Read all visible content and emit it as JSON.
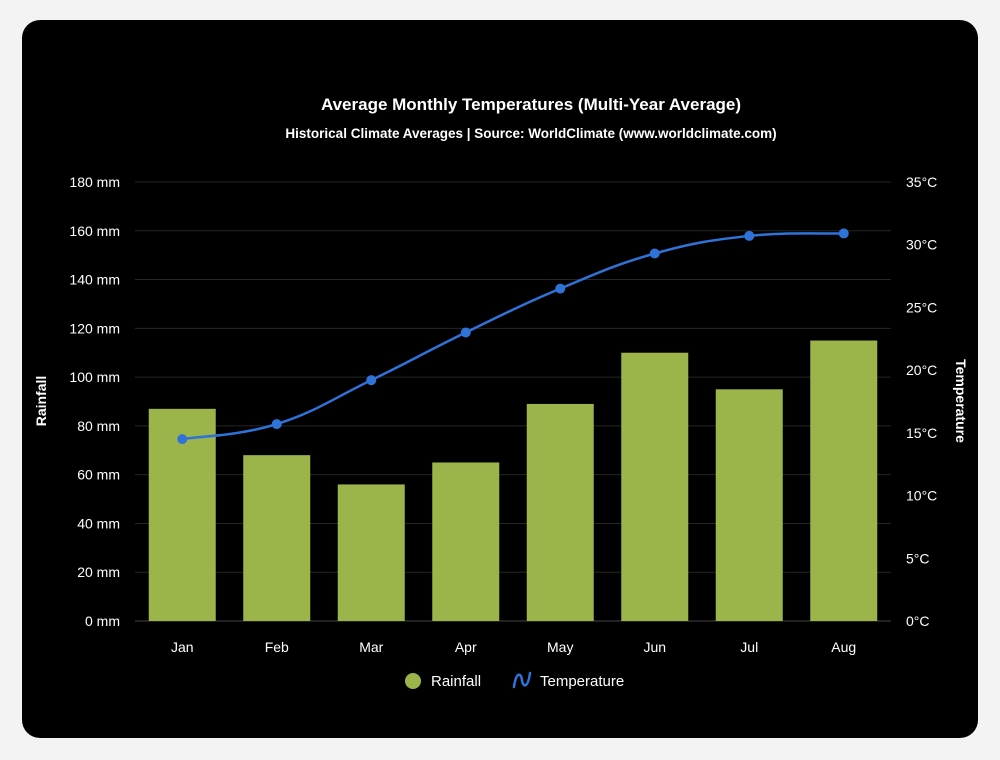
{
  "chart_data": {
    "type": "bar",
    "title": "Average Monthly Temperatures (Multi-Year Average)",
    "subtitle": "Historical Climate Averages | Source: WorldClimate (www.worldclimate.com)",
    "categories": [
      "Jan",
      "Feb",
      "Mar",
      "Apr",
      "May",
      "Jun",
      "Jul",
      "Aug"
    ],
    "series": [
      {
        "name": "Rainfall",
        "type": "bar",
        "axis": "left",
        "color": "#9cb54a",
        "values": [
          87,
          68,
          56,
          65,
          89,
          110,
          95,
          115
        ]
      },
      {
        "name": "Temperature",
        "type": "line",
        "axis": "right",
        "color": "#2f72d8",
        "values": [
          14.5,
          15.7,
          19.2,
          23.0,
          26.5,
          29.3,
          30.7,
          30.9
        ]
      }
    ],
    "y_left": {
      "label": "Rainfall",
      "range": [
        0,
        180
      ],
      "ticks": [
        "0 mm",
        "20 mm",
        "40 mm",
        "60 mm",
        "80 mm",
        "100 mm",
        "120 mm",
        "140 mm",
        "160 mm",
        "180 mm"
      ]
    },
    "y_right": {
      "label": "Temperature",
      "range": [
        0,
        35
      ],
      "ticks": [
        "0°C",
        "5°C",
        "10°C",
        "15°C",
        "20°C",
        "25°C",
        "30°C",
        "35°C"
      ]
    },
    "grid": true,
    "legend": "bottom"
  }
}
